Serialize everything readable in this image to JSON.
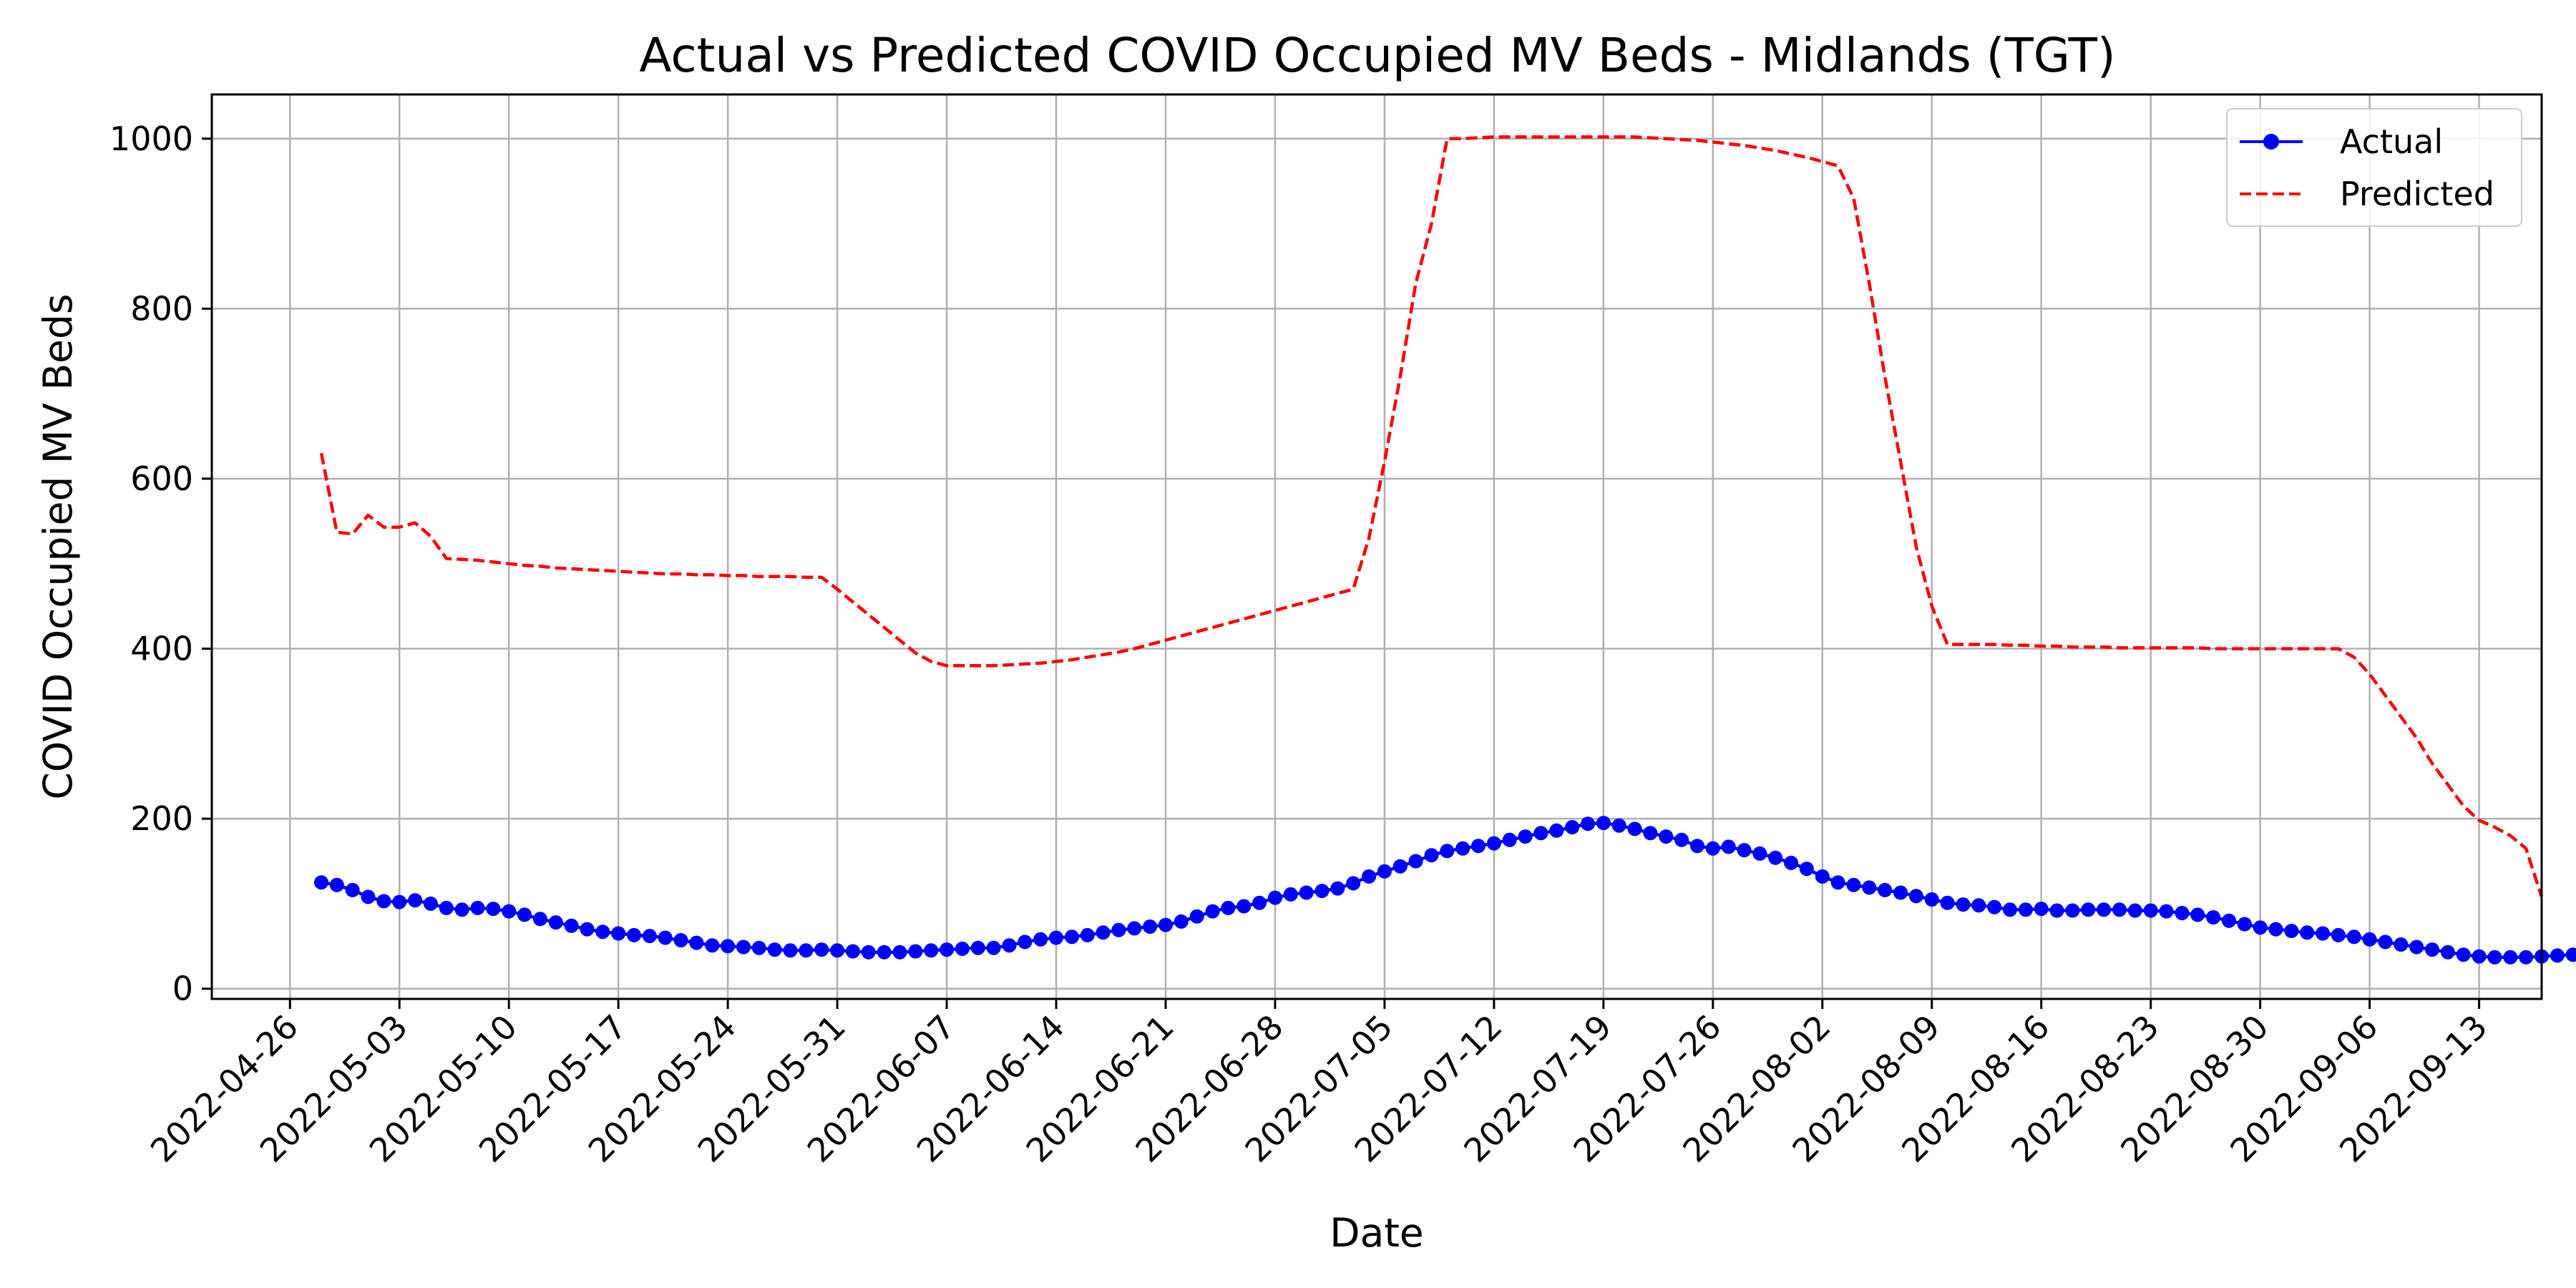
{
  "chart_data": {
    "type": "line",
    "title": "Actual vs Predicted COVID Occupied MV Beds - Midlands (TGT)",
    "xlabel": "Date",
    "ylabel": "COVID Occupied MV Beds",
    "x_start": "2022-04-28",
    "x_end": "2022-09-12",
    "xlim": [
      "2022-04-21",
      "2022-09-17"
    ],
    "ylim": [
      -12,
      1052
    ],
    "x_ticks": [
      "2022-04-26",
      "2022-05-03",
      "2022-05-10",
      "2022-05-17",
      "2022-05-24",
      "2022-05-31",
      "2022-06-07",
      "2022-06-14",
      "2022-06-21",
      "2022-06-28",
      "2022-07-05",
      "2022-07-12",
      "2022-07-19",
      "2022-07-26",
      "2022-08-02",
      "2022-08-09",
      "2022-08-16",
      "2022-08-23",
      "2022-08-30",
      "2022-09-06",
      "2022-09-13"
    ],
    "y_ticks": [
      0,
      200,
      400,
      600,
      800,
      1000
    ],
    "grid": true,
    "legend_position": "top-right",
    "series": [
      {
        "name": "Actual",
        "color": "#0000ff",
        "style": "solid-circle-markers",
        "values": [
          125,
          122,
          116,
          108,
          103,
          102,
          104,
          100,
          95,
          93,
          95,
          94,
          91,
          87,
          82,
          78,
          74,
          70,
          67,
          65,
          63,
          62,
          60,
          57,
          54,
          51,
          50,
          49,
          48,
          46,
          45,
          45,
          46,
          45,
          44,
          43,
          43,
          43,
          44,
          45,
          46,
          47,
          48,
          48,
          51,
          55,
          58,
          60,
          61,
          63,
          66,
          69,
          71,
          73,
          75,
          79,
          85,
          91,
          95,
          97,
          101,
          107,
          111,
          113,
          115,
          118,
          124,
          132,
          138,
          144,
          150,
          157,
          162,
          165,
          168,
          171,
          175,
          179,
          183,
          186,
          190,
          194,
          195,
          192,
          188,
          183,
          179,
          175,
          168,
          165,
          167,
          163,
          159,
          154,
          148,
          141,
          132,
          125,
          122,
          119,
          116,
          113,
          109,
          105,
          101,
          99,
          98,
          96,
          93,
          93,
          94,
          92,
          92,
          93,
          93,
          93,
          92,
          92,
          91,
          89,
          87,
          84,
          80,
          76,
          72,
          70,
          68,
          66,
          65,
          63,
          61,
          58,
          55,
          52,
          49,
          46,
          43,
          40,
          38,
          37,
          37,
          37,
          38,
          39,
          40
        ]
      },
      {
        "name": "Predicted",
        "color": "#ff0000",
        "style": "dashed",
        "values": [
          630,
          537,
          535,
          557,
          543,
          543,
          548,
          532,
          506,
          505,
          504,
          502,
          500,
          498,
          497,
          495,
          494,
          493,
          492,
          491,
          490,
          489,
          488,
          488,
          487,
          487,
          486,
          486,
          485,
          485,
          485,
          484,
          484,
          470,
          455,
          440,
          425,
          410,
          395,
          385,
          380,
          380,
          380,
          380,
          381,
          382,
          383,
          385,
          387,
          390,
          393,
          396,
          400,
          405,
          410,
          415,
          420,
          425,
          430,
          435,
          440,
          445,
          450,
          455,
          460,
          465,
          470,
          530,
          620,
          720,
          830,
          900,
          1000,
          1000,
          1001,
          1002,
          1002,
          1002,
          1002,
          1002,
          1002,
          1002,
          1002,
          1002,
          1002,
          1001,
          1000,
          999,
          998,
          996,
          994,
          992,
          989,
          986,
          982,
          978,
          973,
          968,
          930,
          830,
          720,
          620,
          520,
          450,
          405,
          405,
          405,
          405,
          404,
          404,
          403,
          403,
          402,
          402,
          402,
          401,
          401,
          401,
          401,
          401,
          401,
          400,
          400,
          400,
          400,
          400,
          400,
          400,
          400,
          400,
          390,
          370,
          345,
          320,
          295,
          265,
          240,
          215,
          198,
          190,
          180,
          165,
          108
        ]
      }
    ]
  }
}
